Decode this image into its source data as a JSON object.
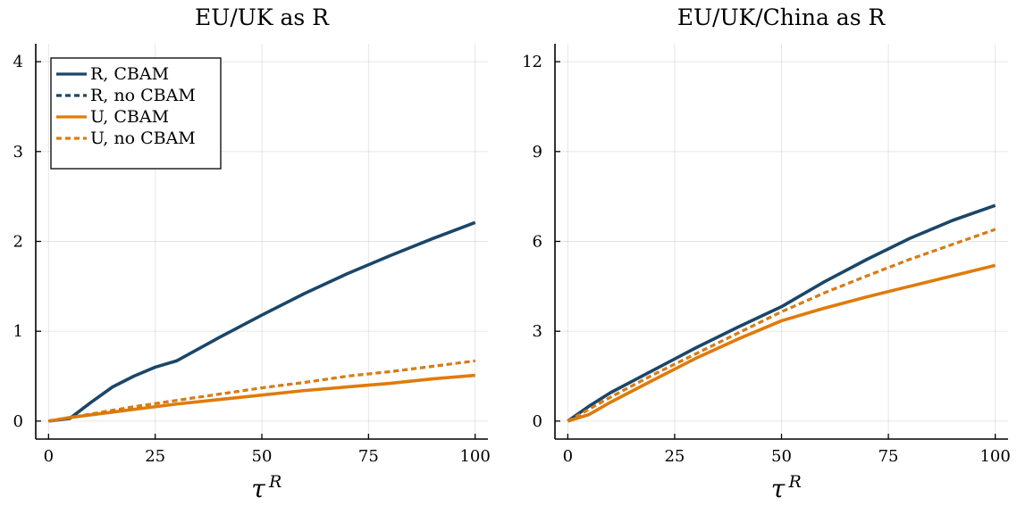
{
  "colors": {
    "R": "#1b4668",
    "U": "#e07b0a"
  },
  "legend": [
    {
      "label": "R, CBAM",
      "color": "#1b4668",
      "dash": false
    },
    {
      "label": "R, no CBAM",
      "color": "#1b4668",
      "dash": true
    },
    {
      "label": "U, CBAM",
      "color": "#e07b0a",
      "dash": false
    },
    {
      "label": "U, no CBAM",
      "color": "#e07b0a",
      "dash": true
    }
  ],
  "chart_data": [
    {
      "type": "line",
      "title": "EU/UK as R",
      "xlabel": "τ",
      "xlabel_sup": "R",
      "xlim": [
        -3,
        103
      ],
      "ylim": [
        -0.2,
        4.2
      ],
      "xticks": [
        0,
        25,
        50,
        75,
        100
      ],
      "yticks": [
        0,
        1,
        2,
        3,
        4
      ],
      "legend_position": "top-left",
      "series": [
        {
          "name": "R, CBAM",
          "color": "#1b4668",
          "dash": false,
          "x": [
            0,
            5,
            10,
            15,
            20,
            25,
            30,
            40,
            50,
            60,
            70,
            80,
            90,
            100
          ],
          "y": [
            0,
            0.03,
            0.21,
            0.38,
            0.5,
            0.6,
            0.67,
            0.93,
            1.18,
            1.42,
            1.64,
            1.84,
            2.03,
            2.21
          ]
        },
        {
          "name": "R, no CBAM",
          "color": "#1b4668",
          "dash": true,
          "x": [
            0,
            10,
            20,
            30,
            40,
            50,
            60,
            70,
            80,
            90,
            100
          ],
          "y": [
            0,
            0.08,
            0.16,
            0.23,
            0.3,
            0.37,
            0.43,
            0.5,
            0.55,
            0.61,
            0.67
          ]
        },
        {
          "name": "U, CBAM",
          "color": "#e07b0a",
          "dash": false,
          "x": [
            0,
            5,
            10,
            15,
            20,
            25,
            30,
            40,
            50,
            60,
            70,
            80,
            90,
            100
          ],
          "y": [
            0,
            0.04,
            0.07,
            0.1,
            0.13,
            0.16,
            0.19,
            0.24,
            0.29,
            0.34,
            0.38,
            0.42,
            0.47,
            0.51
          ]
        },
        {
          "name": "U, no CBAM",
          "color": "#e07b0a",
          "dash": true,
          "x": [
            0,
            10,
            20,
            30,
            40,
            50,
            60,
            70,
            80,
            90,
            100
          ],
          "y": [
            0,
            0.08,
            0.16,
            0.23,
            0.3,
            0.37,
            0.43,
            0.5,
            0.55,
            0.61,
            0.67
          ]
        }
      ]
    },
    {
      "type": "line",
      "title": "EU/UK/China as R",
      "xlabel": "τ",
      "xlabel_sup": "R",
      "xlim": [
        -3,
        103
      ],
      "ylim": [
        -0.6,
        12.6
      ],
      "xticks": [
        0,
        25,
        50,
        75,
        100
      ],
      "yticks": [
        0,
        3,
        6,
        9,
        12
      ],
      "series": [
        {
          "name": "R, CBAM",
          "color": "#1b4668",
          "dash": false,
          "x": [
            0,
            5,
            10,
            20,
            30,
            40,
            50,
            60,
            70,
            80,
            90,
            100
          ],
          "y": [
            0,
            0.5,
            0.95,
            1.7,
            2.45,
            3.15,
            3.82,
            4.65,
            5.4,
            6.1,
            6.7,
            7.2
          ]
        },
        {
          "name": "R, no CBAM",
          "color": "#1b4668",
          "dash": true,
          "x": [
            0,
            5,
            10,
            20,
            30,
            40,
            50,
            60,
            70,
            80,
            90,
            100
          ],
          "y": [
            0,
            0.4,
            0.8,
            1.55,
            2.25,
            2.95,
            3.65,
            4.28,
            4.85,
            5.4,
            5.9,
            6.4
          ]
        },
        {
          "name": "U, CBAM",
          "color": "#e07b0a",
          "dash": false,
          "x": [
            0,
            5,
            10,
            20,
            30,
            40,
            50,
            60,
            70,
            80,
            90,
            100
          ],
          "y": [
            0,
            0.22,
            0.63,
            1.37,
            2.1,
            2.75,
            3.35,
            3.77,
            4.15,
            4.5,
            4.85,
            5.2
          ]
        },
        {
          "name": "U, no CBAM",
          "color": "#e07b0a",
          "dash": true,
          "x": [
            0,
            5,
            10,
            20,
            30,
            40,
            50,
            60,
            70,
            80,
            90,
            100
          ],
          "y": [
            0,
            0.4,
            0.8,
            1.55,
            2.25,
            2.95,
            3.65,
            4.28,
            4.85,
            5.4,
            5.9,
            6.4
          ]
        }
      ]
    }
  ]
}
